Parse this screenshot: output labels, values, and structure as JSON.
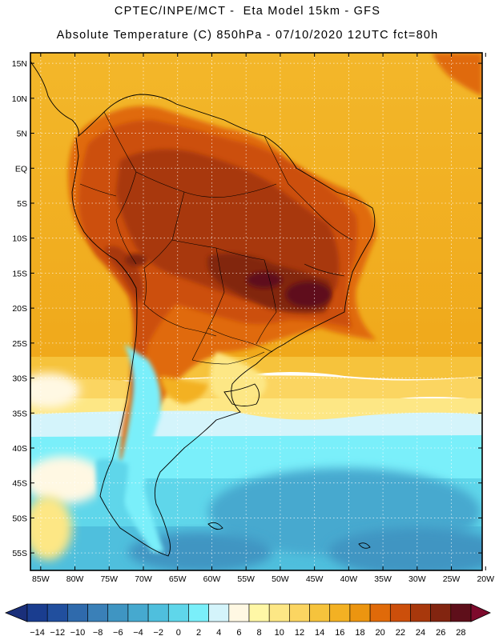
{
  "header": {
    "line1": "CPTEC/INPE/MCT -  Eta Model 15km - GFS",
    "line2": "Absolute Temperature (C) 850hPa - 07/10/2020 12UTC fct=80h"
  },
  "axes": {
    "lat_labels": [
      "15N",
      "10N",
      "5N",
      "EQ",
      "5S",
      "10S",
      "15S",
      "20S",
      "25S",
      "30S",
      "35S",
      "40S",
      "45S",
      "50S",
      "55S"
    ],
    "lat_values": [
      15,
      10,
      5,
      0,
      -5,
      -10,
      -15,
      -20,
      -25,
      -30,
      -35,
      -40,
      -45,
      -50,
      -55
    ],
    "lon_labels": [
      "85W",
      "80W",
      "75W",
      "70W",
      "65W",
      "60W",
      "55W",
      "50W",
      "45W",
      "40W",
      "35W",
      "30W",
      "25W",
      "20W"
    ],
    "lon_values": [
      -85,
      -80,
      -75,
      -70,
      -65,
      -60,
      -55,
      -50,
      -45,
      -40,
      -35,
      -30,
      -25,
      -20
    ],
    "lat_range": [
      -57.5,
      16.5
    ],
    "lon_range": [
      -86.5,
      -20.5
    ]
  },
  "legend": {
    "labels": [
      "-14",
      "-12",
      "-10",
      "-8",
      "-6",
      "-4",
      "-2",
      "0",
      "2",
      "4",
      "6",
      "8",
      "10",
      "12",
      "14",
      "16",
      "18",
      "20",
      "22",
      "24",
      "26",
      "28"
    ],
    "colors": [
      "#1a3d8f",
      "#214f9e",
      "#2f6aac",
      "#3a80b8",
      "#3f95c2",
      "#46a9cf",
      "#4fbfdd",
      "#5fd6ea",
      "#7aeffa",
      "#d4f4fb",
      "#fff8e3",
      "#fff7a6",
      "#fde785",
      "#fbd561",
      "#f6c33c",
      "#f3b123",
      "#ec9510",
      "#e06a09",
      "#cc4f0b",
      "#a8380c",
      "#822510",
      "#5e0f1a"
    ],
    "under_color": "#1a2f7a",
    "over_color": "#7d0a2c"
  },
  "colors": {
    "ocean_base": "#f0ad1a",
    "land_base": "#c8560c",
    "hot_core": "#8a1a1a",
    "grid": "#ffffff",
    "border": "#000000"
  }
}
